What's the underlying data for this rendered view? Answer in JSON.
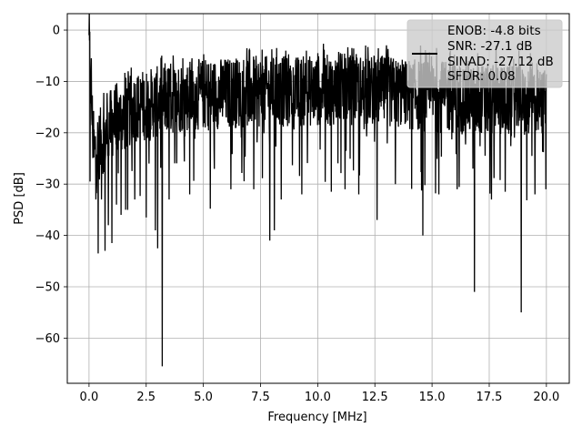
{
  "chart_data": {
    "type": "line",
    "title": "",
    "xlabel": "Frequency [MHz]",
    "ylabel": "PSD [dB]",
    "xlim": [
      -0.95,
      21.0
    ],
    "ylim": [
      -68.8,
      3.2
    ],
    "x_ticks": [
      0.0,
      2.5,
      5.0,
      7.5,
      10.0,
      12.5,
      15.0,
      17.5,
      20.0
    ],
    "x_tick_labels": [
      "0.0",
      "2.5",
      "5.0",
      "7.5",
      "10.0",
      "12.5",
      "15.0",
      "17.5",
      "20.0"
    ],
    "y_ticks": [
      0,
      -10,
      -20,
      -30,
      -40,
      -50,
      -60
    ],
    "y_tick_labels": [
      "0",
      "−10",
      "−20",
      "−30",
      "−40",
      "−50",
      "−60"
    ],
    "grid": true,
    "legend_position": "top-right",
    "legend_lines": [
      "ENOB: -4.8 bits",
      "SNR: -27.1 dB",
      "SINAD: -27.12 dB",
      "SFDR: 0.08"
    ],
    "series": [
      {
        "color": "#000000",
        "x_start": 0.0,
        "x_end": 20.0,
        "anchors": [
          [
            0.0,
            -2.0
          ],
          [
            0.2,
            -24.0
          ],
          [
            0.5,
            -22.0
          ],
          [
            1.0,
            -18.0
          ],
          [
            1.5,
            -17.0
          ],
          [
            2.0,
            -15.0
          ],
          [
            3.0,
            -14.0
          ],
          [
            4.0,
            -13.0
          ],
          [
            5.0,
            -12.5
          ],
          [
            7.0,
            -12.0
          ],
          [
            9.0,
            -12.0
          ],
          [
            11.0,
            -11.5
          ],
          [
            13.0,
            -12.0
          ],
          [
            15.0,
            -13.0
          ],
          [
            17.0,
            -13.5
          ],
          [
            18.5,
            -14.0
          ],
          [
            20.0,
            -14.5
          ]
        ],
        "spread": 7.0,
        "points": 1800,
        "peaks": [
          [
            0.0,
            -1.0
          ],
          [
            0.05,
            -2.3
          ],
          [
            0.1,
            -5.5
          ],
          [
            3.2,
            -5.5
          ],
          [
            4.1,
            -5.5
          ],
          [
            4.5,
            -5.5
          ],
          [
            7.0,
            -4.0
          ],
          [
            8.2,
            -3.5
          ],
          [
            8.6,
            -4.0
          ],
          [
            9.5,
            -4.0
          ],
          [
            10.0,
            -4.5
          ],
          [
            11.0,
            -4.5
          ],
          [
            11.5,
            -3.5
          ],
          [
            12.1,
            -3.0
          ],
          [
            13.0,
            -4.0
          ],
          [
            14.5,
            -3.0
          ],
          [
            15.2,
            -3.5
          ],
          [
            15.8,
            -4.0
          ],
          [
            17.0,
            -4.5
          ],
          [
            17.8,
            -3.0
          ],
          [
            18.8,
            -4.0
          ],
          [
            19.3,
            -4.5
          ],
          [
            19.9,
            -10.0
          ]
        ],
        "dips": [
          [
            0.05,
            -29.5
          ],
          [
            0.3,
            -33.0
          ],
          [
            0.4,
            -43.5
          ],
          [
            0.55,
            -33.0
          ],
          [
            0.7,
            -43.0
          ],
          [
            0.85,
            -38.0
          ],
          [
            1.0,
            -41.5
          ],
          [
            1.2,
            -34.0
          ],
          [
            1.4,
            -36.0
          ],
          [
            1.6,
            -35.0
          ],
          [
            2.0,
            -33.0
          ],
          [
            2.5,
            -36.5
          ],
          [
            2.9,
            -39.0
          ],
          [
            3.0,
            -42.5
          ],
          [
            3.2,
            -65.5
          ],
          [
            3.5,
            -33.0
          ],
          [
            4.4,
            -32.0
          ],
          [
            5.3,
            -34.8
          ],
          [
            6.2,
            -31.0
          ],
          [
            7.2,
            -31.0
          ],
          [
            7.9,
            -41.0
          ],
          [
            8.1,
            -39.0
          ],
          [
            8.4,
            -33.0
          ],
          [
            9.3,
            -32.0
          ],
          [
            10.6,
            -31.5
          ],
          [
            11.2,
            -31.0
          ],
          [
            11.8,
            -32.0
          ],
          [
            12.6,
            -37.0
          ],
          [
            13.4,
            -30.0
          ],
          [
            14.6,
            -40.0
          ],
          [
            15.3,
            -32.0
          ],
          [
            16.1,
            -31.0
          ],
          [
            16.85,
            -51.0
          ],
          [
            17.6,
            -33.0
          ],
          [
            18.2,
            -31.5
          ],
          [
            18.9,
            -55.0
          ],
          [
            19.5,
            -32.0
          ],
          [
            19.98,
            -31.0
          ]
        ]
      }
    ]
  }
}
